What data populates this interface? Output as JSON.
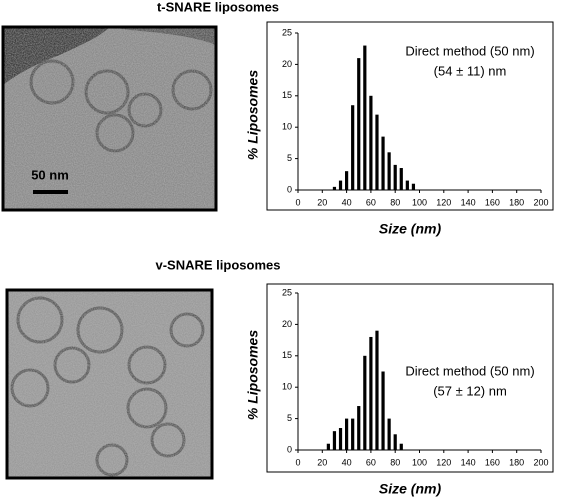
{
  "scale_bar_label": "50 nm",
  "chart_data": [
    {
      "type": "bar",
      "title": "t-SNARE liposomes",
      "xlabel": "Size (nm)",
      "ylabel": "% Liposomes",
      "annotations": [
        "Direct method (50 nm)",
        "(54 ± 11) nm"
      ],
      "x": [
        30,
        35,
        40,
        45,
        50,
        55,
        60,
        65,
        70,
        75,
        80,
        85,
        90,
        95
      ],
      "values": [
        0.5,
        1.5,
        3,
        13.5,
        21,
        23,
        15,
        12,
        8.5,
        6,
        4,
        3.5,
        1.5,
        1
      ],
      "color": "#000000",
      "xlim": [
        0,
        200
      ],
      "xticks": [
        0,
        20,
        40,
        60,
        80,
        100,
        120,
        140,
        160,
        180,
        200
      ],
      "ylim": [
        0,
        25
      ],
      "yticks": [
        0,
        5,
        10,
        15,
        20,
        25
      ]
    },
    {
      "type": "bar",
      "title": "v-SNARE liposomes",
      "xlabel": "Size (nm)",
      "ylabel": "% Liposomes",
      "annotations": [
        "Direct method (50 nm)",
        "(57 ± 12) nm"
      ],
      "x": [
        25,
        30,
        35,
        40,
        45,
        50,
        55,
        60,
        65,
        70,
        75,
        80,
        85
      ],
      "values": [
        1,
        3,
        3.5,
        5,
        5,
        7,
        15,
        18,
        19,
        12.5,
        5,
        2.5,
        1
      ],
      "color": "#000000",
      "xlim": [
        0,
        200
      ],
      "xticks": [
        0,
        20,
        40,
        60,
        80,
        100,
        120,
        140,
        160,
        180,
        200
      ],
      "ylim": [
        0,
        25
      ],
      "yticks": [
        0,
        5,
        10,
        15,
        20,
        25
      ]
    }
  ]
}
